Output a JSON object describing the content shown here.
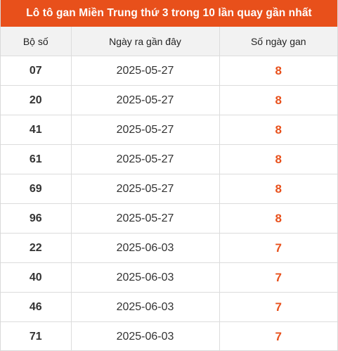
{
  "title": "Lô tô gan Miền Trung thứ 3 trong 10 lần quay gần nhất",
  "colors": {
    "accent": "#e8501b",
    "header_bg": "#f2f2f2",
    "border": "#dcdcdc"
  },
  "table": {
    "headers": [
      "Bộ số",
      "Ngày ra gần đây",
      "Số ngày gan"
    ],
    "rows": [
      {
        "number": "07",
        "date": "2025-05-27",
        "days": "8"
      },
      {
        "number": "20",
        "date": "2025-05-27",
        "days": "8"
      },
      {
        "number": "41",
        "date": "2025-05-27",
        "days": "8"
      },
      {
        "number": "61",
        "date": "2025-05-27",
        "days": "8"
      },
      {
        "number": "69",
        "date": "2025-05-27",
        "days": "8"
      },
      {
        "number": "96",
        "date": "2025-05-27",
        "days": "8"
      },
      {
        "number": "22",
        "date": "2025-06-03",
        "days": "7"
      },
      {
        "number": "40",
        "date": "2025-06-03",
        "days": "7"
      },
      {
        "number": "46",
        "date": "2025-06-03",
        "days": "7"
      },
      {
        "number": "71",
        "date": "2025-06-03",
        "days": "7"
      }
    ]
  }
}
